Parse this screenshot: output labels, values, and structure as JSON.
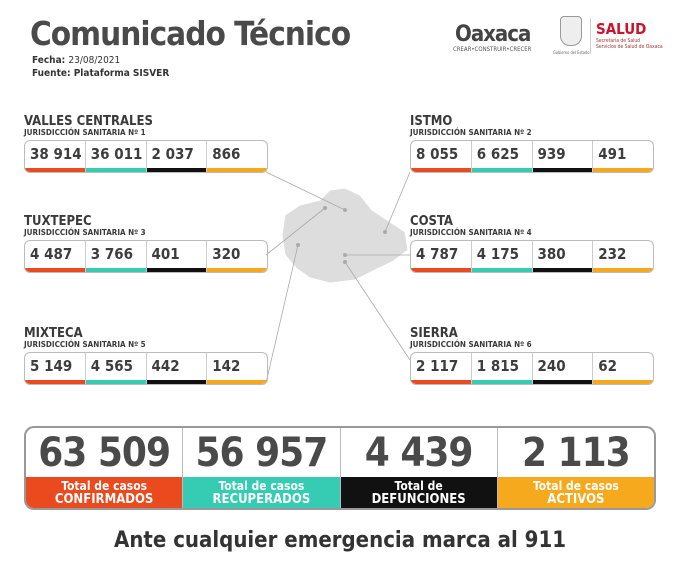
{
  "header": {
    "title": "Comunicado Técnico",
    "fecha_label": "Fecha:",
    "fecha": "23/08/2021",
    "fuente": "Fuente: Plataforma SISVER"
  },
  "logos": {
    "oaxaca": "Oaxaca",
    "oaxaca_slogan": "CREAR•CONSTRUIR•CRECER",
    "seal_caption": "Gobierno del Estado",
    "salud": "SALUD",
    "salud_sub1": "Secretaría de Salud",
    "salud_sub2": "Servicios de Salud de Oaxaca"
  },
  "colors": {
    "confirmados": "#ea4a1d",
    "recuperados": "#35ccb3",
    "defunciones": "#111111",
    "activos": "#f6a91c"
  },
  "regions": [
    {
      "name": "VALLES CENTRALES",
      "sub": "JURISDICCIÓN SANITARIA Nº 1",
      "values": [
        "38 914",
        "36 011",
        "2 037",
        "866"
      ]
    },
    {
      "name": "ISTMO",
      "sub": "JURISDICCIÓN SANITARIA Nº 2",
      "values": [
        "8 055",
        "6 625",
        "939",
        "491"
      ]
    },
    {
      "name": "TUXTEPEC",
      "sub": "JURISDICCIÓN SANITARIA Nº 3",
      "values": [
        "4 487",
        "3 766",
        "401",
        "320"
      ]
    },
    {
      "name": "COSTA",
      "sub": "JURISDICCIÓN SANITARIA Nº 4",
      "values": [
        "4 787",
        "4 175",
        "380",
        "232"
      ]
    },
    {
      "name": "MIXTECA",
      "sub": "JURISDICCIÓN SANITARIA Nº 5",
      "values": [
        "5 149",
        "4 565",
        "442",
        "142"
      ]
    },
    {
      "name": "SIERRA",
      "sub": "JURISDICCIÓN SANITARIA Nº 6",
      "values": [
        "2 117",
        "1 815",
        "240",
        "62"
      ]
    }
  ],
  "totals": [
    {
      "value": "63 509",
      "l1": "Total de casos",
      "l2": "CONFIRMADOS"
    },
    {
      "value": "56 957",
      "l1": "Total de casos",
      "l2": "RECUPERADOS"
    },
    {
      "value": "4 439",
      "l1": "Total de",
      "l2": "DEFUNCIONES"
    },
    {
      "value": "2 113",
      "l1": "Total de casos",
      "l2": "ACTIVOS"
    }
  ],
  "footer": "Ante cualquier emergencia marca al 911"
}
